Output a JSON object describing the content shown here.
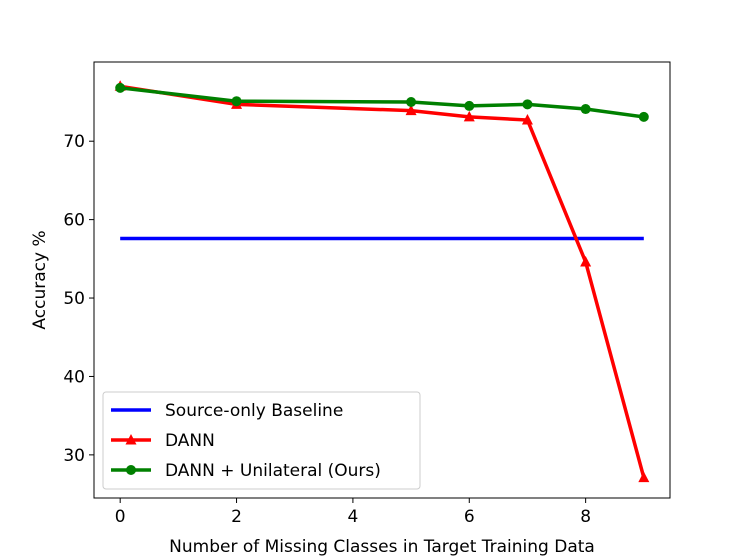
{
  "chart_data": {
    "type": "line",
    "xlabel": "Number of Missing Classes in Target Training Data",
    "ylabel": "Accuracy %",
    "xlim": [
      -0.45,
      9.45
    ],
    "xticks": [
      0,
      2,
      4,
      6,
      8
    ],
    "ylim": [
      24.5,
      80.1
    ],
    "yticks": [
      30,
      40,
      50,
      60,
      70
    ],
    "legend": "lower left",
    "series": [
      {
        "name": "Source-only Baseline",
        "color": "#0000ff",
        "marker": "none",
        "x": [
          0,
          9
        ],
        "values": [
          57.6,
          57.6
        ]
      },
      {
        "name": "DANN",
        "color": "#ff0000",
        "marker": "triangle",
        "x": [
          0,
          2,
          5,
          6,
          7,
          8,
          9
        ],
        "values": [
          77.0,
          74.7,
          73.9,
          73.1,
          72.7,
          54.6,
          27.1
        ]
      },
      {
        "name": "DANN + Unilateral (Ours)",
        "color": "#008000",
        "marker": "circle",
        "x": [
          0,
          2,
          5,
          6,
          7,
          8,
          9
        ],
        "values": [
          76.8,
          75.1,
          75.0,
          74.5,
          74.7,
          74.1,
          73.1
        ]
      }
    ]
  }
}
